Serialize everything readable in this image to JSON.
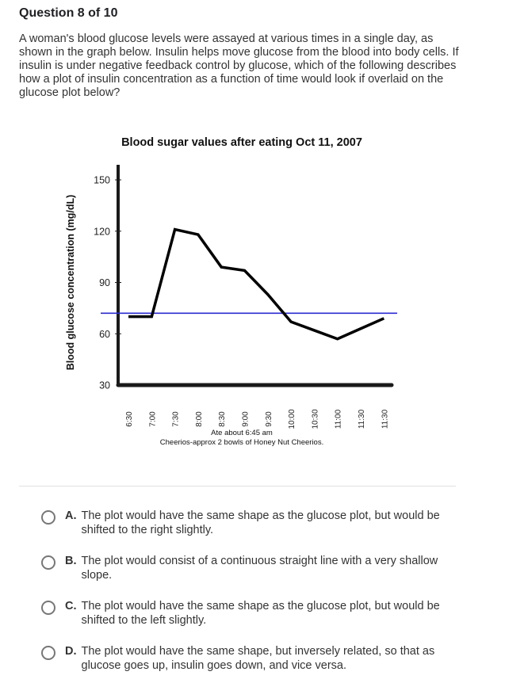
{
  "question": {
    "header": "Question 8 of 10",
    "text": "A woman's blood glucose levels were assayed at various times in a single day, as shown in the graph below. Insulin helps move glucose from the blood into body cells. If insulin is under negative feedback control by glucose, which of the following describes how a plot of insulin concentration as a function of time would look if overlaid on the glucose plot below?"
  },
  "chart_data": {
    "type": "line",
    "title": "Blood sugar values after eating Oct 11, 2007",
    "ylabel": "Blood glucose concentration (mg/dL)",
    "xlabel_lines": [
      "Ate about 6:45 am",
      "Cheerios-approx 2 bowls of Honey Nut Cheerios."
    ],
    "categories": [
      "6:30",
      "7:00",
      "7:30",
      "8:00",
      "8:30",
      "9:00",
      "9:30",
      "10:00",
      "10:30",
      "11:00",
      "11:30",
      "11:30"
    ],
    "values": [
      70,
      70,
      121,
      118,
      99,
      97,
      83,
      67,
      62,
      57,
      63,
      69
    ],
    "yticks": [
      150,
      120,
      90,
      60,
      30
    ],
    "ylim": [
      30,
      158
    ],
    "reference_line": 72,
    "colors": {
      "line": "#000000",
      "reference": "#2a2ad0"
    },
    "grid": false
  },
  "options": [
    {
      "letter": "A.",
      "text": "The plot would have the same shape as the glucose plot, but would be shifted to the right slightly."
    },
    {
      "letter": "B.",
      "text": "The plot would consist of a continuous straight line with a very shallow slope."
    },
    {
      "letter": "C.",
      "text": "The plot would have the same shape as the glucose plot, but would be shifted to the left slightly."
    },
    {
      "letter": "D.",
      "text": "The plot would have the same shape, but inversely related, so that as glucose goes up, insulin goes down, and vice versa."
    }
  ]
}
